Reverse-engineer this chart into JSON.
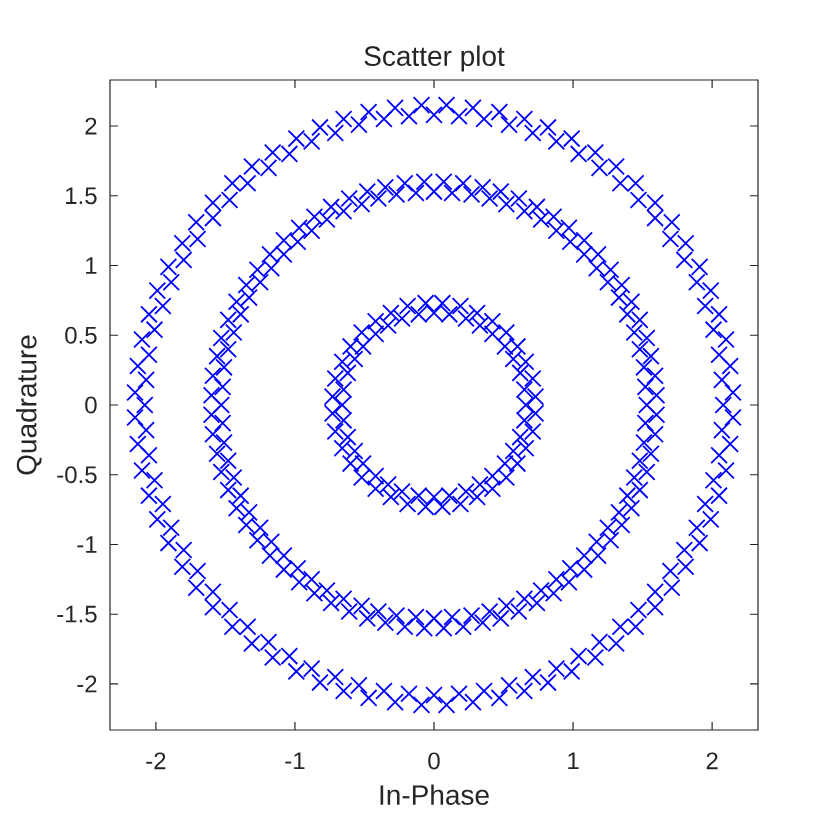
{
  "chart_data": {
    "type": "scatter",
    "title": "Scatter plot",
    "xlabel": "In-Phase",
    "ylabel": "Quadrature",
    "xlim": [
      -2.33,
      2.33
    ],
    "ylim": [
      -2.33,
      2.33
    ],
    "xticks": [
      -2,
      -1,
      0,
      1,
      2
    ],
    "yticks": [
      -2,
      -1.5,
      -1,
      -0.5,
      0,
      0.5,
      1,
      1.5,
      2
    ],
    "marker": "cross",
    "series": [
      {
        "color": "#0000ff",
        "x": [
          2.08,
          2.15,
          2.07,
          2.13,
          2.05,
          2.1,
          2.01,
          2.05,
          1.95,
          1.99,
          1.89,
          1.91,
          1.8,
          1.81,
          1.7,
          1.71,
          1.59,
          1.59,
          1.47,
          1.45,
          1.34,
          1.31,
          1.19,
          1.16,
          1.04,
          0.99,
          0.88,
          0.82,
          0.71,
          0.65,
          0.54,
          0.47,
          0.36,
          0.28,
          0.18,
          0.09,
          0,
          -0.09,
          -0.18,
          -0.28,
          -0.36,
          -0.47,
          -0.54,
          -0.65,
          -0.71,
          -0.82,
          -0.88,
          -0.99,
          -1.04,
          -1.16,
          -1.19,
          -1.31,
          -1.34,
          -1.45,
          -1.47,
          -1.59,
          -1.59,
          -1.71,
          -1.7,
          -1.81,
          -1.8,
          -1.91,
          -1.89,
          -1.99,
          -1.95,
          -2.05,
          -2.01,
          -2.1,
          -2.05,
          -2.13,
          -2.07,
          -2.15,
          -2.08,
          -2.15,
          -2.07,
          -2.13,
          -2.05,
          -2.1,
          -2.01,
          -2.05,
          -1.95,
          -1.99,
          -1.89,
          -1.91,
          -1.8,
          -1.81,
          -1.7,
          -1.71,
          -1.59,
          -1.59,
          -1.47,
          -1.45,
          -1.34,
          -1.31,
          -1.19,
          -1.16,
          -1.04,
          -0.99,
          -0.88,
          -0.82,
          -0.71,
          -0.65,
          -0.54,
          -0.47,
          -0.36,
          -0.28,
          -0.18,
          -0.09,
          0,
          0.09,
          0.18,
          0.28,
          0.36,
          0.47,
          0.54,
          0.65,
          0.71,
          0.82,
          0.88,
          0.99,
          1.04,
          1.16,
          1.19,
          1.31,
          1.34,
          1.45,
          1.47,
          1.59,
          1.59,
          1.71,
          1.7,
          1.81,
          1.8,
          1.91,
          1.89,
          1.99,
          1.95,
          2.05,
          2.01,
          2.1,
          2.05,
          2.13,
          2.07,
          2.15
        ],
        "values": [
          0,
          0.09,
          0.18,
          0.28,
          0.36,
          0.47,
          0.54,
          0.65,
          0.71,
          0.82,
          0.88,
          0.99,
          1.04,
          1.16,
          1.19,
          1.31,
          1.34,
          1.45,
          1.47,
          1.59,
          1.59,
          1.71,
          1.7,
          1.81,
          1.8,
          1.91,
          1.89,
          1.99,
          1.95,
          2.05,
          2.01,
          2.1,
          2.05,
          2.13,
          2.07,
          2.15,
          2.08,
          2.15,
          2.07,
          2.13,
          2.05,
          2.1,
          2.01,
          2.05,
          1.95,
          1.99,
          1.89,
          1.91,
          1.8,
          1.81,
          1.7,
          1.71,
          1.59,
          1.59,
          1.47,
          1.45,
          1.34,
          1.31,
          1.19,
          1.16,
          1.04,
          0.99,
          0.88,
          0.82,
          0.71,
          0.65,
          0.54,
          0.47,
          0.36,
          0.28,
          0.18,
          0.09,
          0,
          -0.09,
          -0.18,
          -0.28,
          -0.36,
          -0.47,
          -0.54,
          -0.65,
          -0.71,
          -0.82,
          -0.88,
          -0.99,
          -1.04,
          -1.16,
          -1.19,
          -1.31,
          -1.34,
          -1.45,
          -1.47,
          -1.59,
          -1.59,
          -1.71,
          -1.7,
          -1.81,
          -1.8,
          -1.91,
          -1.89,
          -1.99,
          -1.95,
          -2.05,
          -2.01,
          -2.1,
          -2.05,
          -2.13,
          -2.07,
          -2.15,
          -2.08,
          -2.15,
          -2.07,
          -2.13,
          -2.05,
          -2.1,
          -2.01,
          -2.05,
          -1.95,
          -1.99,
          -1.89,
          -1.91,
          -1.8,
          -1.81,
          -1.7,
          -1.71,
          -1.59,
          -1.59,
          -1.47,
          -1.45,
          -1.34,
          -1.31,
          -1.19,
          -1.16,
          -1.04,
          -0.99,
          -0.88,
          -0.82,
          -0.71,
          -0.65,
          -0.54,
          -0.47,
          -0.36,
          -0.28,
          -0.18,
          -0.09
        ]
      },
      {
        "color": "#0000ff",
        "x": [
          1.53,
          1.6,
          1.52,
          1.59,
          1.51,
          1.56,
          1.48,
          1.53,
          1.44,
          1.48,
          1.39,
          1.42,
          1.33,
          1.35,
          1.25,
          1.27,
          1.17,
          1.18,
          1.08,
          1.08,
          0.98,
          0.97,
          0.88,
          0.86,
          0.77,
          0.74,
          0.65,
          0.61,
          0.52,
          0.48,
          0.4,
          0.35,
          0.27,
          0.21,
          0.13,
          0.07,
          0,
          -0.07,
          -0.13,
          -0.21,
          -0.27,
          -0.35,
          -0.4,
          -0.48,
          -0.52,
          -0.61,
          -0.65,
          -0.74,
          -0.77,
          -0.86,
          -0.88,
          -0.97,
          -0.98,
          -1.08,
          -1.08,
          -1.18,
          -1.17,
          -1.27,
          -1.25,
          -1.35,
          -1.33,
          -1.42,
          -1.39,
          -1.48,
          -1.44,
          -1.53,
          -1.48,
          -1.56,
          -1.51,
          -1.59,
          -1.52,
          -1.6,
          -1.53,
          -1.6,
          -1.52,
          -1.59,
          -1.51,
          -1.56,
          -1.48,
          -1.53,
          -1.44,
          -1.48,
          -1.39,
          -1.42,
          -1.33,
          -1.35,
          -1.25,
          -1.27,
          -1.17,
          -1.18,
          -1.08,
          -1.08,
          -0.98,
          -0.97,
          -0.88,
          -0.86,
          -0.77,
          -0.74,
          -0.65,
          -0.61,
          -0.52,
          -0.48,
          -0.4,
          -0.35,
          -0.27,
          -0.21,
          -0.13,
          -0.07,
          0,
          0.07,
          0.13,
          0.21,
          0.27,
          0.35,
          0.4,
          0.48,
          0.52,
          0.61,
          0.65,
          0.74,
          0.77,
          0.86,
          0.88,
          0.97,
          0.98,
          1.08,
          1.08,
          1.18,
          1.17,
          1.27,
          1.25,
          1.35,
          1.33,
          1.42,
          1.39,
          1.48,
          1.44,
          1.53,
          1.48,
          1.56,
          1.51,
          1.59,
          1.52,
          1.6
        ],
        "values": [
          0,
          0.07,
          0.13,
          0.21,
          0.27,
          0.35,
          0.4,
          0.48,
          0.52,
          0.61,
          0.65,
          0.74,
          0.77,
          0.86,
          0.88,
          0.97,
          0.98,
          1.08,
          1.08,
          1.18,
          1.17,
          1.27,
          1.25,
          1.35,
          1.33,
          1.42,
          1.39,
          1.48,
          1.44,
          1.53,
          1.48,
          1.56,
          1.51,
          1.59,
          1.52,
          1.6,
          1.53,
          1.6,
          1.52,
          1.59,
          1.51,
          1.56,
          1.48,
          1.53,
          1.44,
          1.48,
          1.39,
          1.42,
          1.33,
          1.35,
          1.25,
          1.27,
          1.17,
          1.18,
          1.08,
          1.08,
          0.98,
          0.97,
          0.88,
          0.86,
          0.77,
          0.74,
          0.65,
          0.61,
          0.52,
          0.48,
          0.4,
          0.35,
          0.27,
          0.21,
          0.13,
          0.07,
          0,
          -0.07,
          -0.13,
          -0.21,
          -0.27,
          -0.35,
          -0.4,
          -0.48,
          -0.52,
          -0.61,
          -0.65,
          -0.74,
          -0.77,
          -0.86,
          -0.88,
          -0.97,
          -0.98,
          -1.08,
          -1.08,
          -1.18,
          -1.17,
          -1.27,
          -1.25,
          -1.35,
          -1.33,
          -1.42,
          -1.39,
          -1.48,
          -1.44,
          -1.53,
          -1.48,
          -1.56,
          -1.51,
          -1.59,
          -1.52,
          -1.6,
          -1.53,
          -1.6,
          -1.52,
          -1.59,
          -1.51,
          -1.56,
          -1.48,
          -1.53,
          -1.44,
          -1.48,
          -1.39,
          -1.42,
          -1.33,
          -1.35,
          -1.25,
          -1.27,
          -1.17,
          -1.18,
          -1.08,
          -1.08,
          -0.98,
          -0.97,
          -0.88,
          -0.86,
          -0.77,
          -0.74,
          -0.65,
          -0.61,
          -0.52,
          -0.48,
          -0.4,
          -0.35,
          -0.27,
          -0.21,
          -0.13,
          -0.07
        ]
      },
      {
        "color": "#0000ff",
        "x": [
          0.66,
          0.73,
          0.65,
          0.71,
          0.62,
          0.66,
          0.57,
          0.6,
          0.51,
          0.52,
          0.42,
          0.42,
          0.33,
          0.31,
          0.23,
          0.19,
          0.11,
          0.06,
          0,
          -0.06,
          -0.11,
          -0.19,
          -0.23,
          -0.31,
          -0.33,
          -0.42,
          -0.42,
          -0.52,
          -0.51,
          -0.6,
          -0.57,
          -0.66,
          -0.62,
          -0.71,
          -0.65,
          -0.73,
          -0.66,
          -0.73,
          -0.65,
          -0.71,
          -0.62,
          -0.66,
          -0.57,
          -0.6,
          -0.51,
          -0.52,
          -0.42,
          -0.42,
          -0.33,
          -0.31,
          -0.23,
          -0.19,
          -0.11,
          -0.06,
          0,
          0.06,
          0.11,
          0.19,
          0.23,
          0.31,
          0.33,
          0.42,
          0.42,
          0.52,
          0.51,
          0.6,
          0.57,
          0.66,
          0.62,
          0.71,
          0.65,
          0.73
        ],
        "values": [
          0,
          0.06,
          0.11,
          0.19,
          0.23,
          0.31,
          0.33,
          0.42,
          0.42,
          0.52,
          0.51,
          0.6,
          0.57,
          0.66,
          0.62,
          0.71,
          0.65,
          0.73,
          0.66,
          0.73,
          0.65,
          0.71,
          0.62,
          0.66,
          0.57,
          0.6,
          0.51,
          0.52,
          0.42,
          0.42,
          0.33,
          0.31,
          0.23,
          0.19,
          0.11,
          0.06,
          0,
          -0.06,
          -0.11,
          -0.19,
          -0.23,
          -0.31,
          -0.33,
          -0.42,
          -0.42,
          -0.52,
          -0.51,
          -0.6,
          -0.57,
          -0.66,
          -0.62,
          -0.71,
          -0.65,
          -0.73,
          -0.66,
          -0.73,
          -0.65,
          -0.71,
          -0.62,
          -0.66,
          -0.57,
          -0.6,
          -0.51,
          -0.52,
          -0.42,
          -0.42,
          -0.33,
          -0.31,
          -0.23,
          -0.19,
          -0.11,
          -0.06
        ]
      }
    ]
  }
}
